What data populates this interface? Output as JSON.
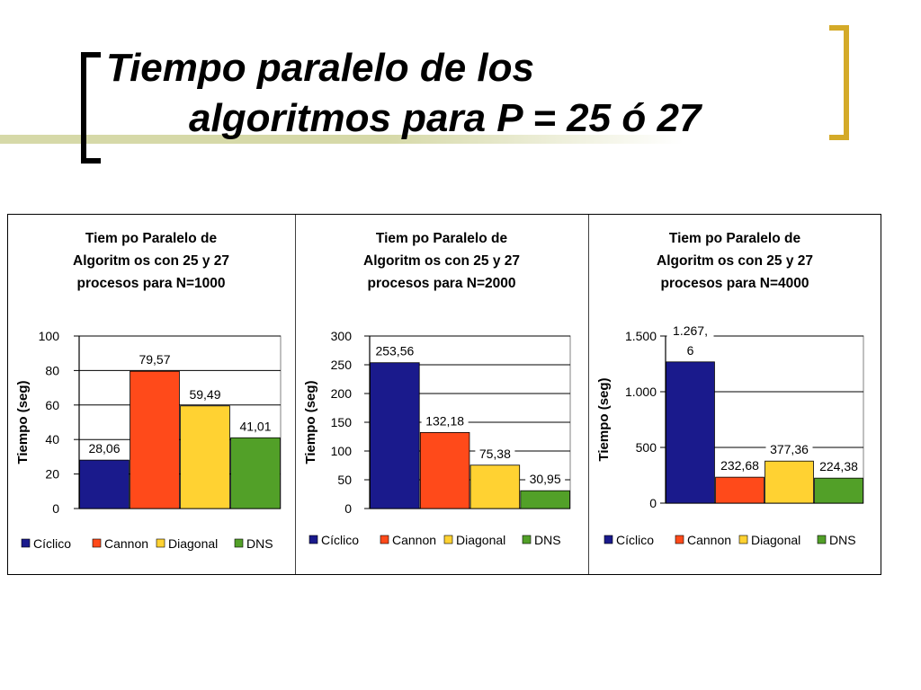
{
  "slide": {
    "title_line1": "Tiempo paralelo de los",
    "title_line2": "algoritmos para P = 25 ó 27"
  },
  "colors": {
    "Cíclico": "#1a1a8c",
    "Cannon": "#ff4a1a",
    "Diagonal": "#ffd232",
    "DNS": "#52a028",
    "bracket_left": "#000000",
    "bracket_right": "#d4aa28",
    "accent_bar": "#d6d9a8"
  },
  "chart_data": [
    {
      "type": "bar",
      "title": [
        "Tiem po Paralelo de",
        "Algoritm os con 25 y 27",
        "procesos para N=1000"
      ],
      "ylabel": "Tiempo (seg)",
      "xlabel": "",
      "categories": [
        "Cíclico",
        "Cannon",
        "Diagonal",
        "DNS"
      ],
      "values": [
        28.06,
        79.57,
        59.49,
        41.01
      ],
      "data_labels": [
        "28,06",
        "79,57",
        "59,49",
        "41,01"
      ],
      "ylim": [
        0,
        100
      ],
      "yticks": [
        0,
        20,
        40,
        60,
        80,
        100
      ],
      "ytick_labels": [
        "0",
        "20",
        "40",
        "60",
        "80",
        "100"
      ],
      "legend": [
        "Cíclico",
        "Cannon",
        "Diagonal",
        "DNS"
      ],
      "legend_position": "bottom",
      "grid": true
    },
    {
      "type": "bar",
      "title": [
        "Tiem po Paralelo de",
        "Algoritm os con 25 y 27",
        "procesos para N=2000"
      ],
      "ylabel": "Tiempo (seg)",
      "xlabel": "",
      "categories": [
        "Cíclico",
        "Cannon",
        "Diagonal",
        "DNS"
      ],
      "values": [
        253.56,
        132.18,
        75.38,
        30.95
      ],
      "data_labels": [
        "253,56",
        "132,18",
        "75,38",
        "30,95"
      ],
      "ylim": [
        0,
        300
      ],
      "yticks": [
        0,
        50,
        100,
        150,
        200,
        250,
        300
      ],
      "ytick_labels": [
        "0",
        "50",
        "100",
        "150",
        "200",
        "250",
        "300"
      ],
      "legend": [
        "Cíclico",
        "Cannon",
        "Diagonal",
        "DNS"
      ],
      "legend_position": "bottom",
      "grid": true
    },
    {
      "type": "bar",
      "title": [
        "Tiem po Paralelo de",
        "Algoritm os con 25 y 27",
        "procesos para N=4000"
      ],
      "ylabel": "Tiempo (seg)",
      "xlabel": "",
      "categories": [
        "Cíclico",
        "Cannon",
        "Diagonal",
        "DNS"
      ],
      "values": [
        1267.6,
        232.68,
        377.36,
        224.38
      ],
      "data_labels": [
        "1.267,\n6",
        "232,68",
        "377,36",
        "224,38"
      ],
      "ylim": [
        0,
        1500
      ],
      "yticks": [
        0,
        500,
        1000,
        1500
      ],
      "ytick_labels": [
        "0",
        "500",
        "1.000",
        "1.500"
      ],
      "legend": [
        "Cíclico",
        "Cannon",
        "Diagonal",
        "DNS"
      ],
      "legend_position": "bottom",
      "grid": true
    }
  ]
}
